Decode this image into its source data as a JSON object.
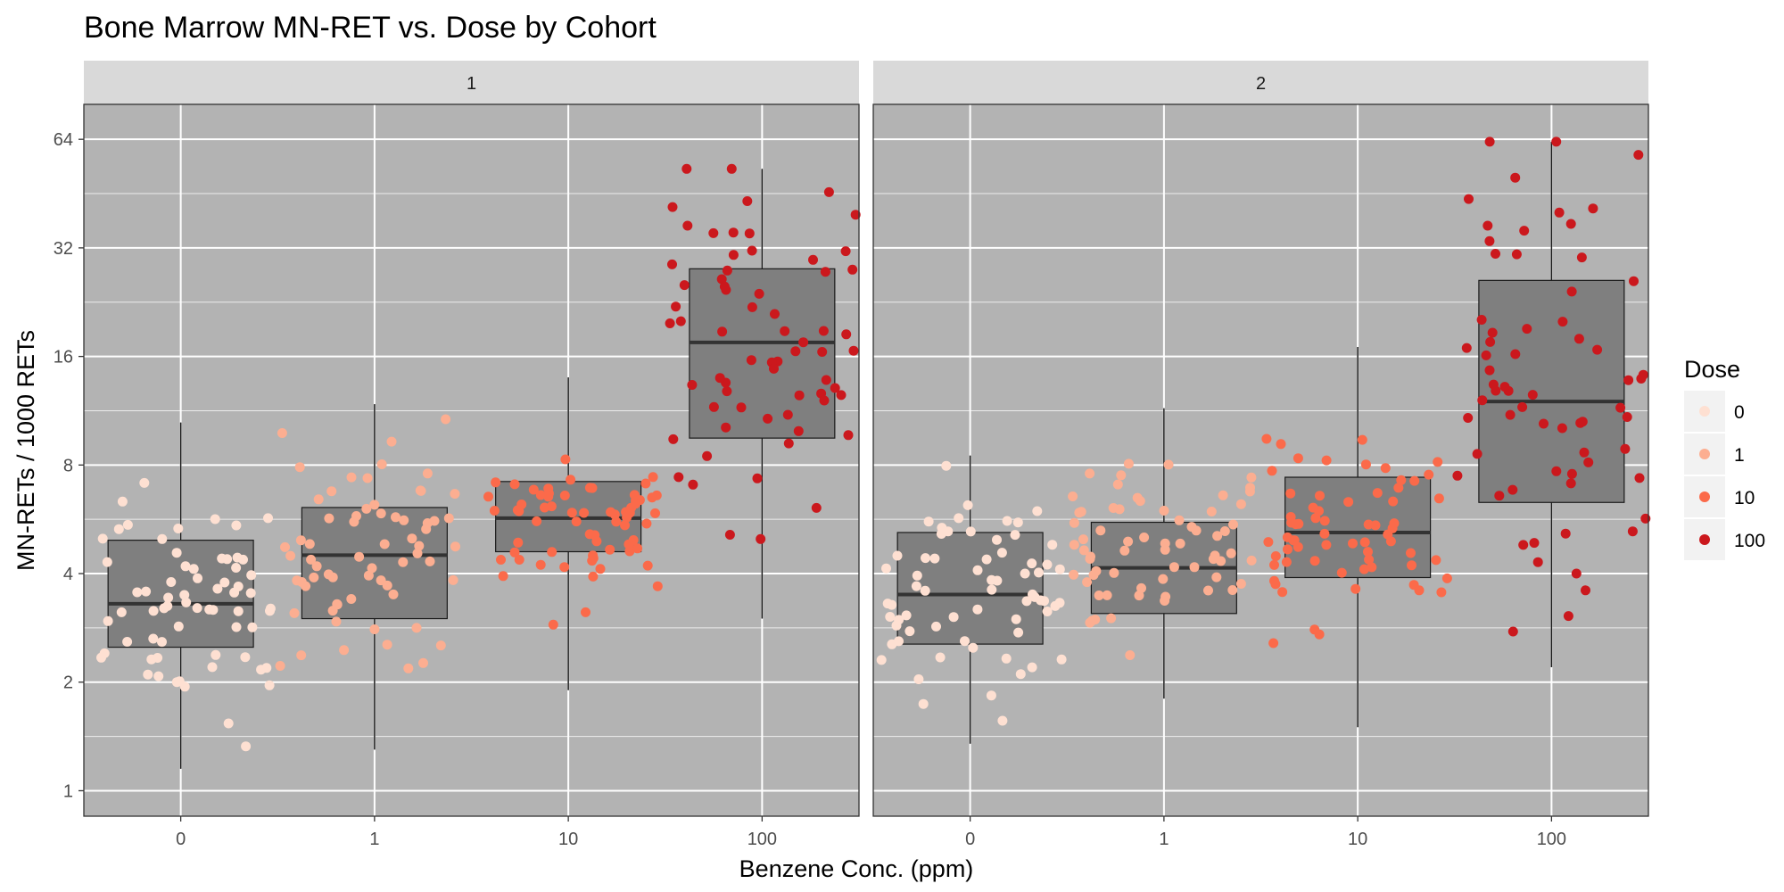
{
  "chart_data": {
    "type": "box",
    "title": "Bone Marrow MN-RET vs. Dose by Cohort",
    "xlabel": "Benzene Conc. (ppm)",
    "ylabel": "MN-RETs / 1000 RETs",
    "y_scale": "log2",
    "ylim": [
      0.85,
      80
    ],
    "y_ticks": [
      "1",
      "2",
      "4",
      "8",
      "16",
      "32",
      "64"
    ],
    "categories": [
      "0",
      "1",
      "10",
      "100"
    ],
    "legend": {
      "title": "Dose",
      "position": "right",
      "entries": [
        {
          "label": "0",
          "color": "#FEE0D2"
        },
        {
          "label": "1",
          "color": "#FCAE91"
        },
        {
          "label": "10",
          "color": "#FB6A4A"
        },
        {
          "label": "100",
          "color": "#CB181D"
        }
      ]
    },
    "panels": [
      {
        "label": "1",
        "boxes": [
          {
            "category": "0",
            "min": 1.15,
            "q1": 2.5,
            "median": 3.3,
            "q3": 4.95,
            "max": 10.5
          },
          {
            "category": "1",
            "min": 1.3,
            "q1": 3.0,
            "median": 4.5,
            "q3": 6.1,
            "max": 11.8
          },
          {
            "category": "10",
            "min": 1.9,
            "q1": 4.6,
            "median": 5.7,
            "q3": 7.2,
            "max": 14.0
          },
          {
            "category": "100",
            "min": 3.0,
            "q1": 9.5,
            "median": 17.5,
            "q3": 28.0,
            "max": 53.0
          }
        ]
      },
      {
        "label": "2",
        "boxes": [
          {
            "category": "0",
            "min": 1.35,
            "q1": 2.55,
            "median": 3.5,
            "q3": 5.2,
            "max": 8.5
          },
          {
            "category": "1",
            "min": 1.8,
            "q1": 3.1,
            "median": 4.15,
            "q3": 5.55,
            "max": 11.5
          },
          {
            "category": "10",
            "min": 1.5,
            "q1": 3.9,
            "median": 5.2,
            "q3": 7.4,
            "max": 17.0
          },
          {
            "category": "100",
            "min": 2.2,
            "q1": 6.3,
            "median": 12.0,
            "q3": 26.0,
            "max": 63.0
          }
        ]
      }
    ]
  }
}
